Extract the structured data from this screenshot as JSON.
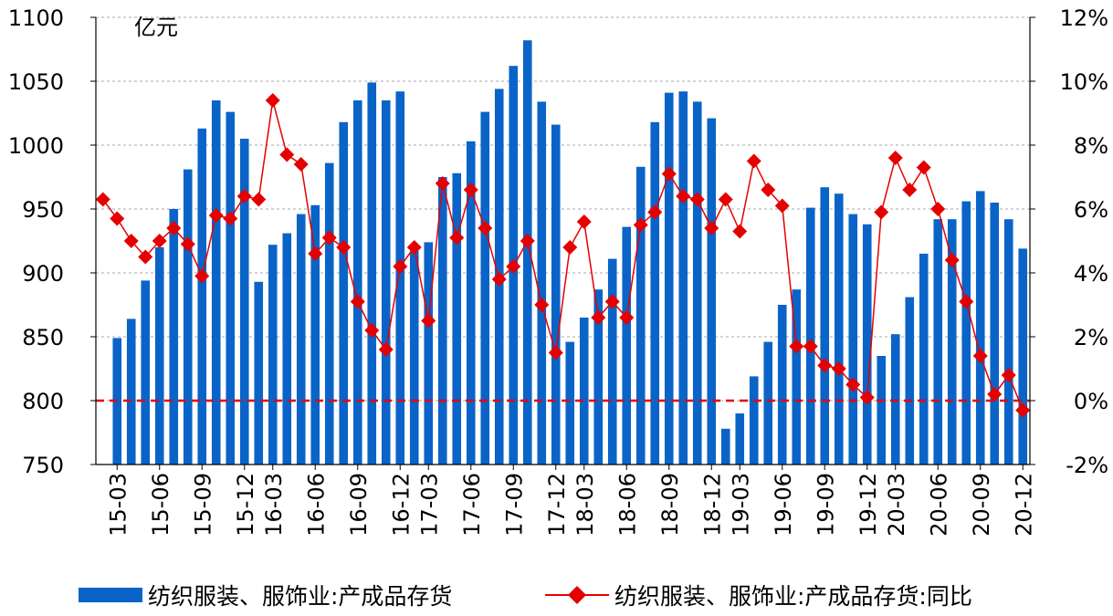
{
  "chart_data": {
    "type": "bar+line",
    "unit_label": "亿元",
    "y_left": {
      "min": 750,
      "max": 1100,
      "ticks": [
        "750",
        "800",
        "850",
        "900",
        "950",
        "1000",
        "1050",
        "1100"
      ]
    },
    "y_right": {
      "min": -2,
      "max": 12,
      "ticks": [
        "-2%",
        "0%",
        "2%",
        "4%",
        "6%",
        "8%",
        "10%",
        "12%"
      ]
    },
    "x_ticks": [
      "15-03",
      "15-06",
      "15-09",
      "15-12",
      "16-03",
      "16-06",
      "16-09",
      "16-12",
      "17-03",
      "17-06",
      "17-09",
      "17-12",
      "18-03",
      "18-06",
      "18-09",
      "18-12",
      "19-03",
      "19-06",
      "19-09",
      "19-12",
      "20-03",
      "20-06",
      "20-09",
      "20-12"
    ],
    "reference_line": {
      "axis": "right",
      "value": 0,
      "color": "#e50000",
      "style": "dashed"
    },
    "series": [
      {
        "name": "纺织服装、服饰业:产成品存货",
        "type": "bar",
        "axis": "left",
        "color": "#0a64c8",
        "points": [
          {
            "x": "15-03",
            "y": 849
          },
          {
            "x": "15-04",
            "y": 864
          },
          {
            "x": "15-05",
            "y": 894
          },
          {
            "x": "15-06",
            "y": 920
          },
          {
            "x": "15-07",
            "y": 950
          },
          {
            "x": "15-08",
            "y": 981
          },
          {
            "x": "15-09",
            "y": 1013
          },
          {
            "x": "15-10",
            "y": 1035
          },
          {
            "x": "15-11",
            "y": 1026
          },
          {
            "x": "15-12",
            "y": 1005
          },
          {
            "x": "16-02",
            "y": 893
          },
          {
            "x": "16-03",
            "y": 922
          },
          {
            "x": "16-04",
            "y": 931
          },
          {
            "x": "16-05",
            "y": 946
          },
          {
            "x": "16-06",
            "y": 953
          },
          {
            "x": "16-07",
            "y": 986
          },
          {
            "x": "16-08",
            "y": 1018
          },
          {
            "x": "16-09",
            "y": 1035
          },
          {
            "x": "16-10",
            "y": 1049
          },
          {
            "x": "16-11",
            "y": 1035
          },
          {
            "x": "16-12",
            "y": 1042
          },
          {
            "x": "17-02",
            "y": 917
          },
          {
            "x": "17-03",
            "y": 924
          },
          {
            "x": "17-04",
            "y": 975
          },
          {
            "x": "17-05",
            "y": 978
          },
          {
            "x": "17-06",
            "y": 1003
          },
          {
            "x": "17-07",
            "y": 1026
          },
          {
            "x": "17-08",
            "y": 1044
          },
          {
            "x": "17-09",
            "y": 1062
          },
          {
            "x": "17-10",
            "y": 1082
          },
          {
            "x": "17-11",
            "y": 1034
          },
          {
            "x": "17-12",
            "y": 1016
          },
          {
            "x": "18-02",
            "y": 846
          },
          {
            "x": "18-03",
            "y": 865
          },
          {
            "x": "18-04",
            "y": 887
          },
          {
            "x": "18-05",
            "y": 911
          },
          {
            "x": "18-06",
            "y": 936
          },
          {
            "x": "18-07",
            "y": 983
          },
          {
            "x": "18-08",
            "y": 1018
          },
          {
            "x": "18-09",
            "y": 1041
          },
          {
            "x": "18-10",
            "y": 1042
          },
          {
            "x": "18-11",
            "y": 1034
          },
          {
            "x": "18-12",
            "y": 1021
          },
          {
            "x": "19-02",
            "y": 778
          },
          {
            "x": "19-03",
            "y": 790
          },
          {
            "x": "19-04",
            "y": 819
          },
          {
            "x": "19-05",
            "y": 846
          },
          {
            "x": "19-06",
            "y": 875
          },
          {
            "x": "19-07",
            "y": 887
          },
          {
            "x": "19-08",
            "y": 951
          },
          {
            "x": "19-09",
            "y": 967
          },
          {
            "x": "19-10",
            "y": 962
          },
          {
            "x": "19-11",
            "y": 946
          },
          {
            "x": "19-12",
            "y": 938
          },
          {
            "x": "20-02",
            "y": 835
          },
          {
            "x": "20-03",
            "y": 852
          },
          {
            "x": "20-04",
            "y": 881
          },
          {
            "x": "20-05",
            "y": 915
          },
          {
            "x": "20-06",
            "y": 942
          },
          {
            "x": "20-07",
            "y": 942
          },
          {
            "x": "20-08",
            "y": 956
          },
          {
            "x": "20-09",
            "y": 964
          },
          {
            "x": "20-10",
            "y": 955
          },
          {
            "x": "20-11",
            "y": 942
          },
          {
            "x": "20-12",
            "y": 919
          }
        ]
      },
      {
        "name": "纺织服装、服饰业:产成品存货:同比",
        "type": "line",
        "axis": "right",
        "color": "#e50000",
        "marker": "diamond",
        "points": [
          {
            "x": "15-02",
            "y": 6.3
          },
          {
            "x": "15-03",
            "y": 5.7
          },
          {
            "x": "15-04",
            "y": 5.0
          },
          {
            "x": "15-05",
            "y": 4.5
          },
          {
            "x": "15-06",
            "y": 5.0
          },
          {
            "x": "15-07",
            "y": 5.4
          },
          {
            "x": "15-08",
            "y": 4.9
          },
          {
            "x": "15-09",
            "y": 3.9
          },
          {
            "x": "15-10",
            "y": 5.8
          },
          {
            "x": "15-11",
            "y": 5.7
          },
          {
            "x": "15-12",
            "y": 6.4
          },
          {
            "x": "16-02",
            "y": 6.3
          },
          {
            "x": "16-03",
            "y": 9.4
          },
          {
            "x": "16-04",
            "y": 7.7
          },
          {
            "x": "16-05",
            "y": 7.4
          },
          {
            "x": "16-06",
            "y": 4.6
          },
          {
            "x": "16-07",
            "y": 5.1
          },
          {
            "x": "16-08",
            "y": 4.8
          },
          {
            "x": "16-09",
            "y": 3.1
          },
          {
            "x": "16-10",
            "y": 2.2
          },
          {
            "x": "16-11",
            "y": 1.6
          },
          {
            "x": "16-12",
            "y": 4.2
          },
          {
            "x": "17-02",
            "y": 4.8
          },
          {
            "x": "17-03",
            "y": 2.5
          },
          {
            "x": "17-04",
            "y": 6.8
          },
          {
            "x": "17-05",
            "y": 5.1
          },
          {
            "x": "17-06",
            "y": 6.6
          },
          {
            "x": "17-07",
            "y": 5.4
          },
          {
            "x": "17-08",
            "y": 3.8
          },
          {
            "x": "17-09",
            "y": 4.2
          },
          {
            "x": "17-10",
            "y": 5.0
          },
          {
            "x": "17-11",
            "y": 3.0
          },
          {
            "x": "17-12",
            "y": 1.5
          },
          {
            "x": "18-02",
            "y": 4.8
          },
          {
            "x": "18-03",
            "y": 5.6
          },
          {
            "x": "18-04",
            "y": 2.6
          },
          {
            "x": "18-05",
            "y": 3.1
          },
          {
            "x": "18-06",
            "y": 2.6
          },
          {
            "x": "18-07",
            "y": 5.5
          },
          {
            "x": "18-08",
            "y": 5.9
          },
          {
            "x": "18-09",
            "y": 7.1
          },
          {
            "x": "18-10",
            "y": 6.4
          },
          {
            "x": "18-11",
            "y": 6.3
          },
          {
            "x": "18-12",
            "y": 5.4
          },
          {
            "x": "19-02",
            "y": 6.3
          },
          {
            "x": "19-03",
            "y": 5.3
          },
          {
            "x": "19-04",
            "y": 7.5
          },
          {
            "x": "19-05",
            "y": 6.6
          },
          {
            "x": "19-06",
            "y": 6.1
          },
          {
            "x": "19-07",
            "y": 1.7
          },
          {
            "x": "19-08",
            "y": 1.7
          },
          {
            "x": "19-09",
            "y": 1.1
          },
          {
            "x": "19-10",
            "y": 1.0
          },
          {
            "x": "19-11",
            "y": 0.5
          },
          {
            "x": "19-12",
            "y": 0.1
          },
          {
            "x": "20-02",
            "y": 5.9
          },
          {
            "x": "20-03",
            "y": 7.6
          },
          {
            "x": "20-04",
            "y": 6.6
          },
          {
            "x": "20-05",
            "y": 7.3
          },
          {
            "x": "20-06",
            "y": 6.0
          },
          {
            "x": "20-07",
            "y": 4.4
          },
          {
            "x": "20-08",
            "y": 3.1
          },
          {
            "x": "20-09",
            "y": 1.4
          },
          {
            "x": "20-10",
            "y": 0.2
          },
          {
            "x": "20-11",
            "y": 0.8
          },
          {
            "x": "20-12",
            "y": -0.3
          }
        ]
      }
    ],
    "legend": {
      "placement": "bottom",
      "items": [
        {
          "label": "纺织服装、服饰业:产成品存货",
          "symbol": "bar",
          "color": "#0a64c8"
        },
        {
          "label": "纺织服装、服饰业:产成品存货:同比",
          "symbol": "line-diamond",
          "color": "#e50000"
        }
      ]
    }
  }
}
